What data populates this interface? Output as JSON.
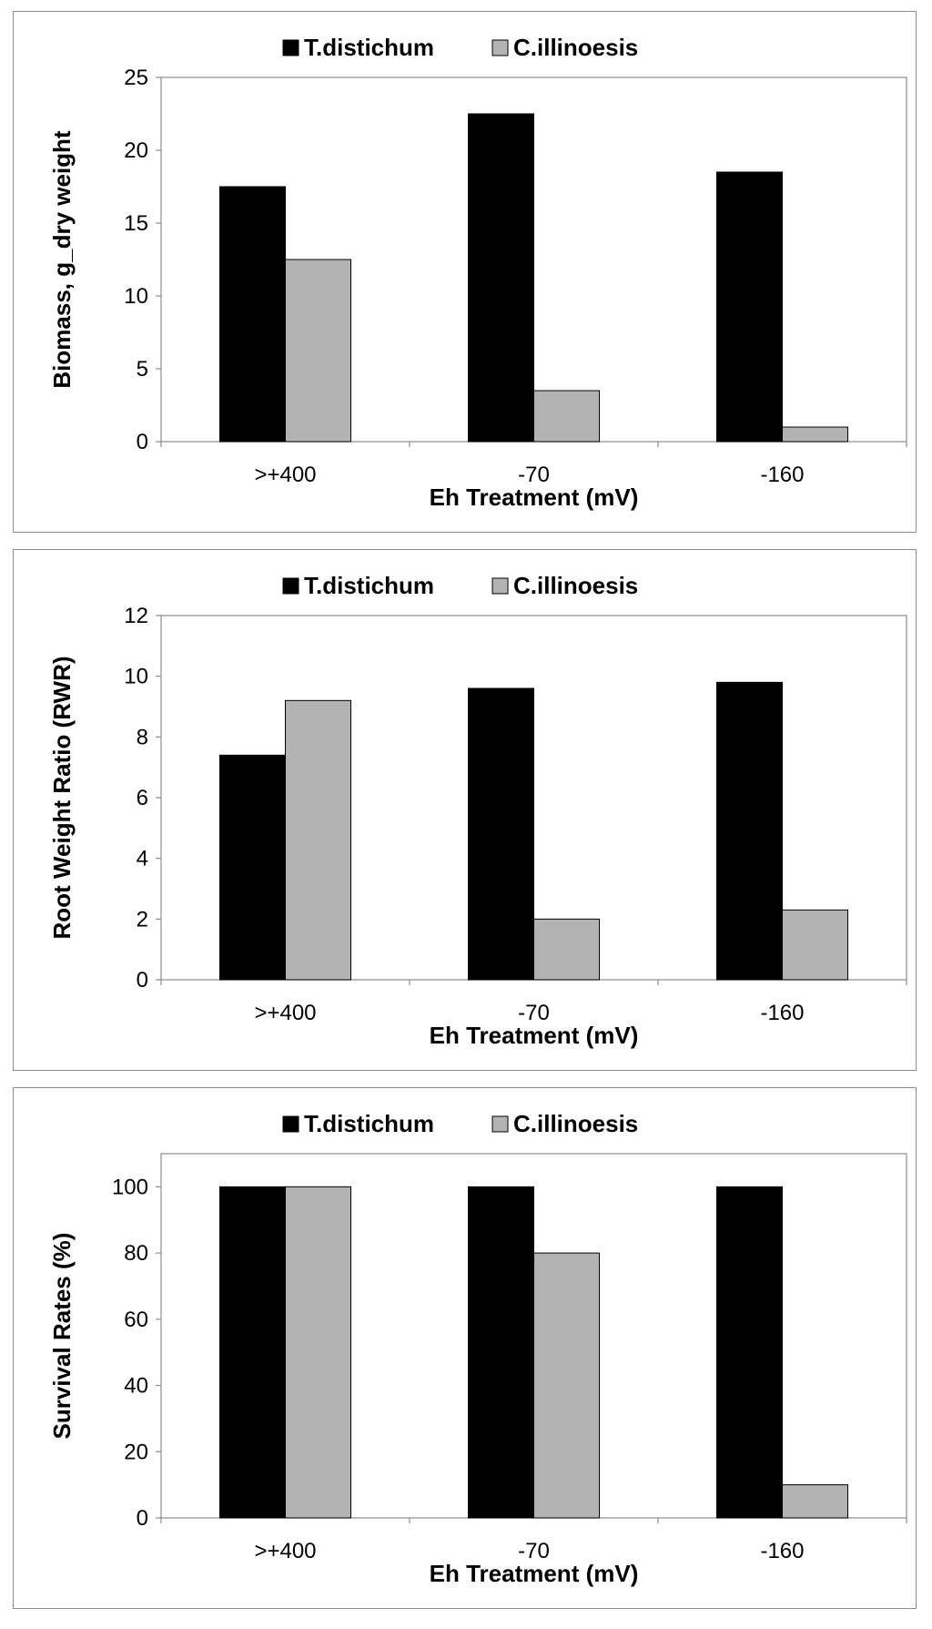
{
  "chart_data": [
    {
      "type": "bar",
      "categories": [
        ">+400",
        "-70",
        "-160"
      ],
      "series": [
        {
          "name": "T.distichum",
          "values": [
            17.5,
            22.5,
            18.5
          ],
          "color": "#000000"
        },
        {
          "name": "C.illinoesis",
          "values": [
            12.5,
            3.5,
            1.0
          ],
          "color": "#b3b3b3"
        }
      ],
      "xlabel": "Eh Treatment (mV)",
      "ylabel": "Biomass, g_dry weight",
      "ylim": [
        0,
        25
      ],
      "yticks": [
        0,
        5,
        10,
        15,
        20,
        25
      ],
      "grid": false,
      "legend": "top-center"
    },
    {
      "type": "bar",
      "categories": [
        ">+400",
        "-70",
        "-160"
      ],
      "series": [
        {
          "name": "T.distichum",
          "values": [
            7.4,
            9.6,
            9.8
          ],
          "color": "#000000"
        },
        {
          "name": "C.illinoesis",
          "values": [
            9.2,
            2.0,
            2.3
          ],
          "color": "#b3b3b3"
        }
      ],
      "xlabel": "Eh Treatment (mV)",
      "ylabel": "Root Weight Ratio (RWR)",
      "ylim": [
        0,
        12
      ],
      "yticks": [
        0,
        2,
        4,
        6,
        8,
        10,
        12
      ],
      "grid": false,
      "legend": "top-center"
    },
    {
      "type": "bar",
      "categories": [
        ">+400",
        "-70",
        "-160"
      ],
      "series": [
        {
          "name": "T.distichum",
          "values": [
            100,
            100,
            100
          ],
          "color": "#000000"
        },
        {
          "name": "C.illinoesis",
          "values": [
            100,
            80,
            10
          ],
          "color": "#b3b3b3"
        }
      ],
      "xlabel": "Eh Treatment (mV)",
      "ylabel": "Survival Rates (%)",
      "ylim": [
        0,
        110
      ],
      "yticks": [
        0,
        20,
        40,
        60,
        80,
        100
      ],
      "grid": false,
      "legend": "top-center"
    }
  ]
}
